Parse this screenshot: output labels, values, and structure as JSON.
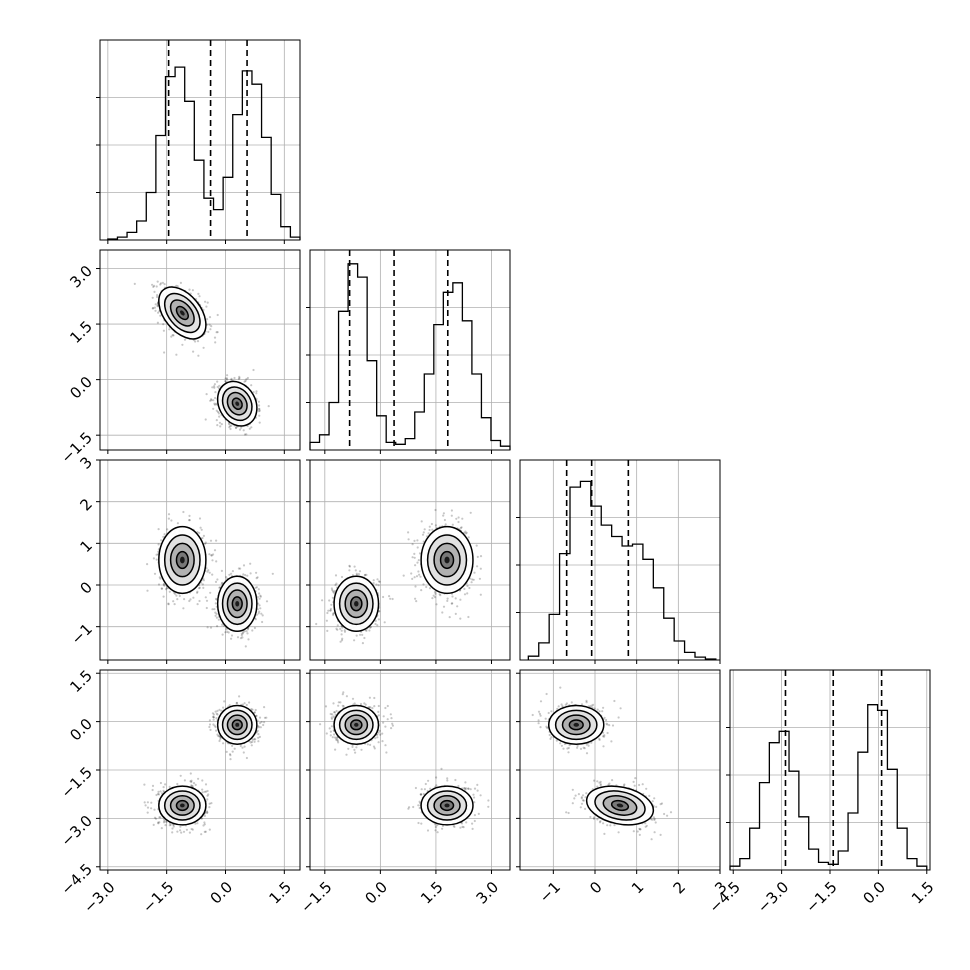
{
  "chart_data": {
    "type": "corner",
    "n_params": 4,
    "title": "",
    "param_labels": [
      "",
      "",
      "",
      ""
    ],
    "ranges": [
      [
        -3.2,
        1.9
      ],
      [
        -1.9,
        3.5
      ],
      [
        -1.8,
        3.0
      ],
      [
        -4.6,
        1.6
      ]
    ],
    "ticks": [
      [
        "-3.0",
        "-1.5",
        "0.0",
        "1.5"
      ],
      [
        "-1.5",
        "0.0",
        "1.5",
        "3.0"
      ],
      [
        "-1",
        "0",
        "1",
        "2",
        "3"
      ],
      [
        "-4.5",
        "-3.0",
        "-1.5",
        "0.0",
        "1.5"
      ]
    ],
    "tick_values": [
      [
        -3.0,
        -1.5,
        0.0,
        1.5
      ],
      [
        -1.5,
        0.0,
        1.5,
        3.0
      ],
      [
        -1,
        0,
        1,
        2,
        3
      ],
      [
        -4.5,
        -3.0,
        -1.5,
        0.0,
        1.5
      ]
    ],
    "quantiles_16_50_84": [
      [
        -1.45,
        -0.38,
        0.55
      ],
      [
        -0.83,
        0.37,
        1.82
      ],
      [
        -0.68,
        -0.08,
        0.8
      ],
      [
        -2.88,
        -1.4,
        0.1
      ]
    ],
    "histograms_1d": [
      {
        "bins": [
          -3.0,
          1.9
        ],
        "counts": [
          0.005,
          0.015,
          0.04,
          0.1,
          0.25,
          0.55,
          0.86,
          0.91,
          0.73,
          0.42,
          0.22,
          0.16,
          0.33,
          0.66,
          0.89,
          0.82,
          0.54,
          0.24,
          0.07,
          0.015
        ]
      },
      {
        "bins": [
          -1.9,
          3.5
        ],
        "counts": [
          0.04,
          0.08,
          0.25,
          0.73,
          0.98,
          0.91,
          0.47,
          0.18,
          0.04,
          0.03,
          0.06,
          0.2,
          0.4,
          0.66,
          0.83,
          0.88,
          0.68,
          0.4,
          0.17,
          0.05,
          0.02
        ]
      },
      {
        "bins": [
          -1.6,
          2.9
        ],
        "counts": [
          0.02,
          0.09,
          0.24,
          0.56,
          0.91,
          0.94,
          0.81,
          0.71,
          0.65,
          0.6,
          0.61,
          0.53,
          0.38,
          0.22,
          0.1,
          0.04,
          0.015,
          0.005
        ]
      },
      {
        "bins": [
          -4.6,
          1.5
        ],
        "counts": [
          0.02,
          0.06,
          0.22,
          0.46,
          0.67,
          0.73,
          0.52,
          0.28,
          0.11,
          0.04,
          0.03,
          0.1,
          0.3,
          0.62,
          0.87,
          0.84,
          0.53,
          0.22,
          0.06,
          0.02
        ]
      }
    ],
    "modes_2d": [
      {
        "weight": 0.5,
        "mean": [
          -1.1,
          1.8,
          0.6,
          -2.6
        ],
        "sd": [
          0.3,
          0.35,
          0.4,
          0.3
        ],
        "rho01": -0.45,
        "rho23": -0.25
      },
      {
        "weight": 0.5,
        "mean": [
          0.3,
          -0.65,
          -0.45,
          -0.1
        ],
        "sd": [
          0.25,
          0.3,
          0.33,
          0.3
        ],
        "rho01": -0.2,
        "rho23": 0.0
      }
    ],
    "contour_levels_sigma": [
      0.5,
      1.0,
      1.5,
      2.0
    ],
    "scatter_points_per_panel": 1400,
    "color": "#000000",
    "grid": true
  }
}
